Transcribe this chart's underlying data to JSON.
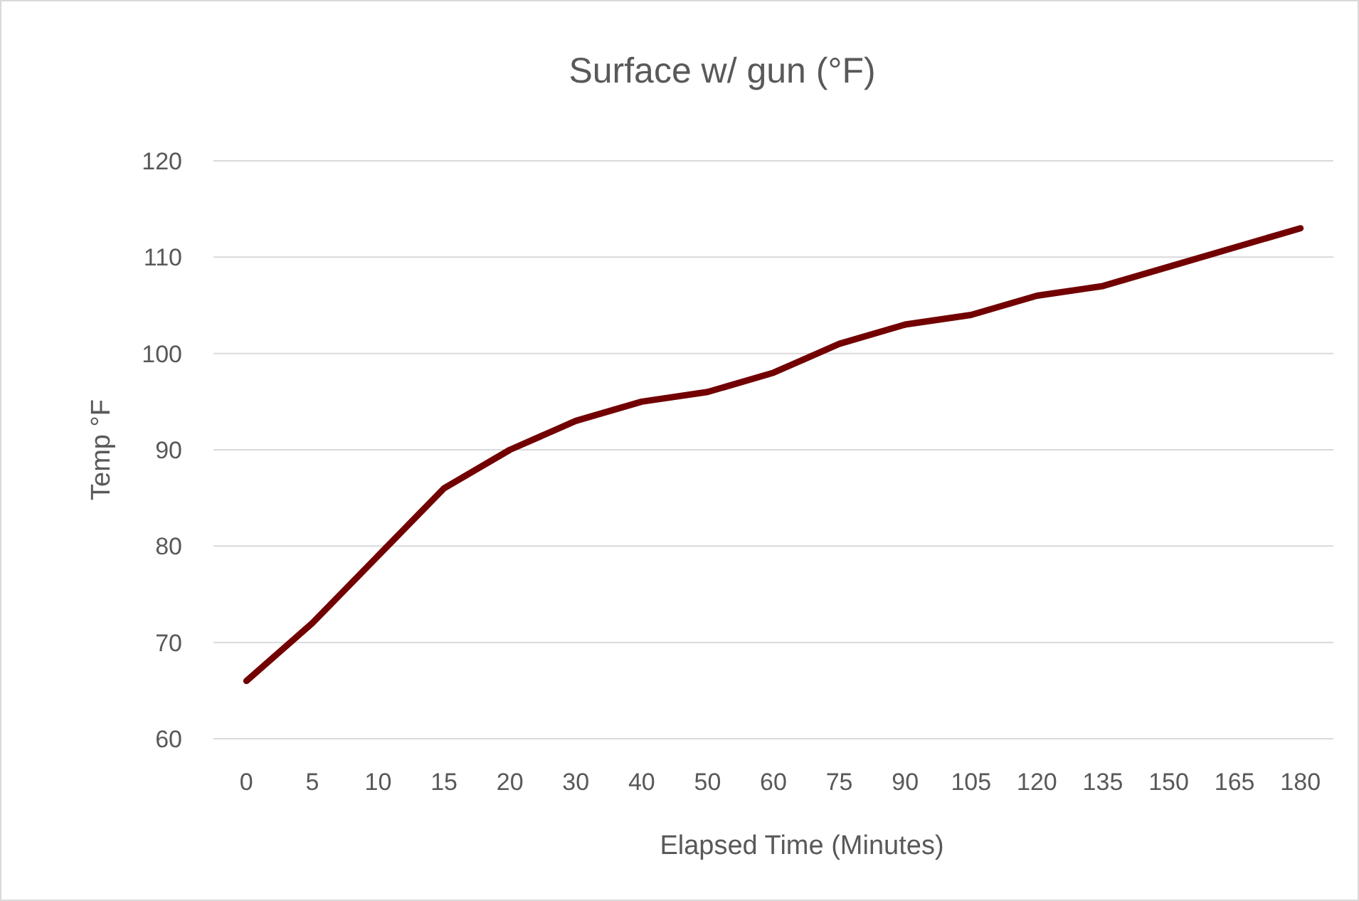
{
  "chart_data": {
    "type": "line",
    "title": "Surface w/ gun (°F)",
    "xlabel": "Elapsed Time (Minutes)",
    "ylabel": "Temp °F",
    "categories": [
      "0",
      "5",
      "10",
      "15",
      "20",
      "30",
      "40",
      "50",
      "60",
      "75",
      "90",
      "105",
      "120",
      "135",
      "150",
      "165",
      "180"
    ],
    "series": [
      {
        "color": "#720000",
        "values": [
          66,
          72,
          79,
          86,
          90,
          93,
          95,
          96,
          98,
          101,
          103,
          104,
          106,
          107,
          109,
          111,
          113
        ]
      }
    ],
    "ylim": [
      60,
      120
    ],
    "yticks": [
      60,
      70,
      80,
      90,
      100,
      110,
      120
    ],
    "grid": "y",
    "marker": "none",
    "line_style": "solid"
  }
}
